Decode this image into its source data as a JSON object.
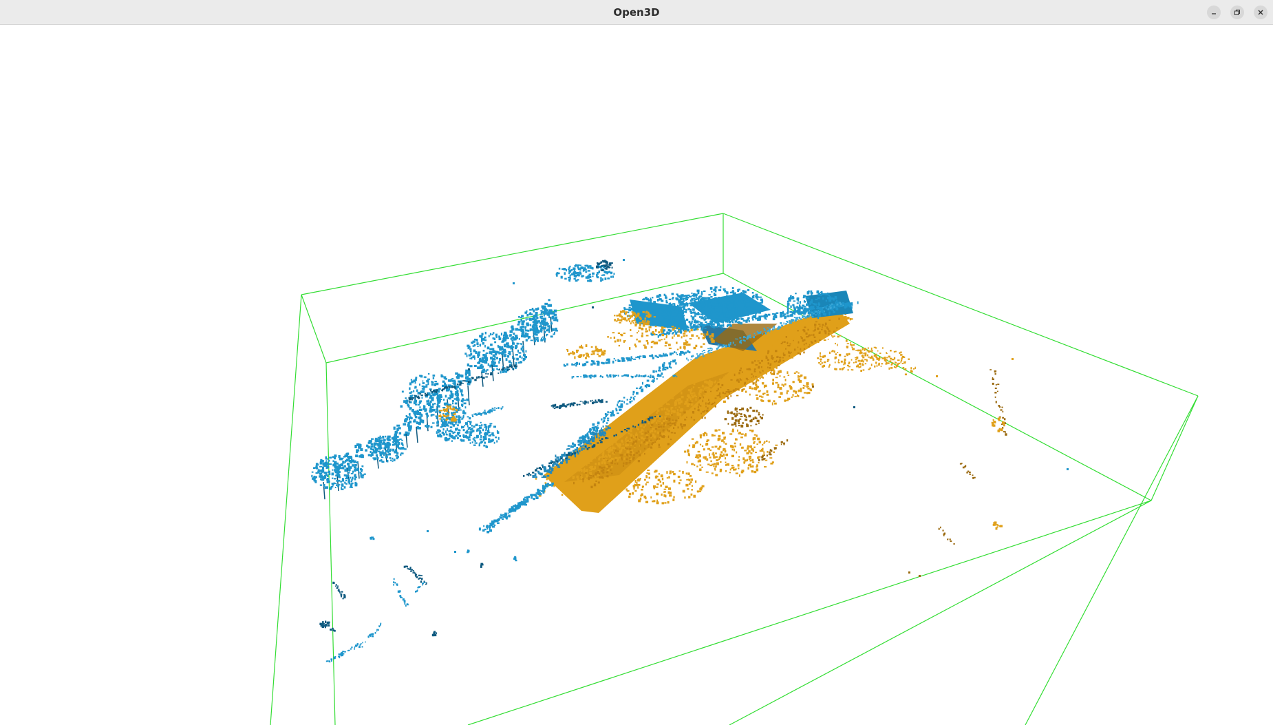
{
  "window": {
    "title": "Open3D",
    "buttons": {
      "minimize_icon": "minimize-icon",
      "restore_icon": "restore-icon",
      "close_icon": "close-icon"
    }
  },
  "scene": {
    "background": "#ffffff",
    "bbox_color": "#33dd33",
    "cloud_colors": {
      "blue": "#1f96cc",
      "dark_blue": "#0f5a80",
      "orange": "#e0a01a",
      "dark_orange": "#9b6a10"
    }
  }
}
